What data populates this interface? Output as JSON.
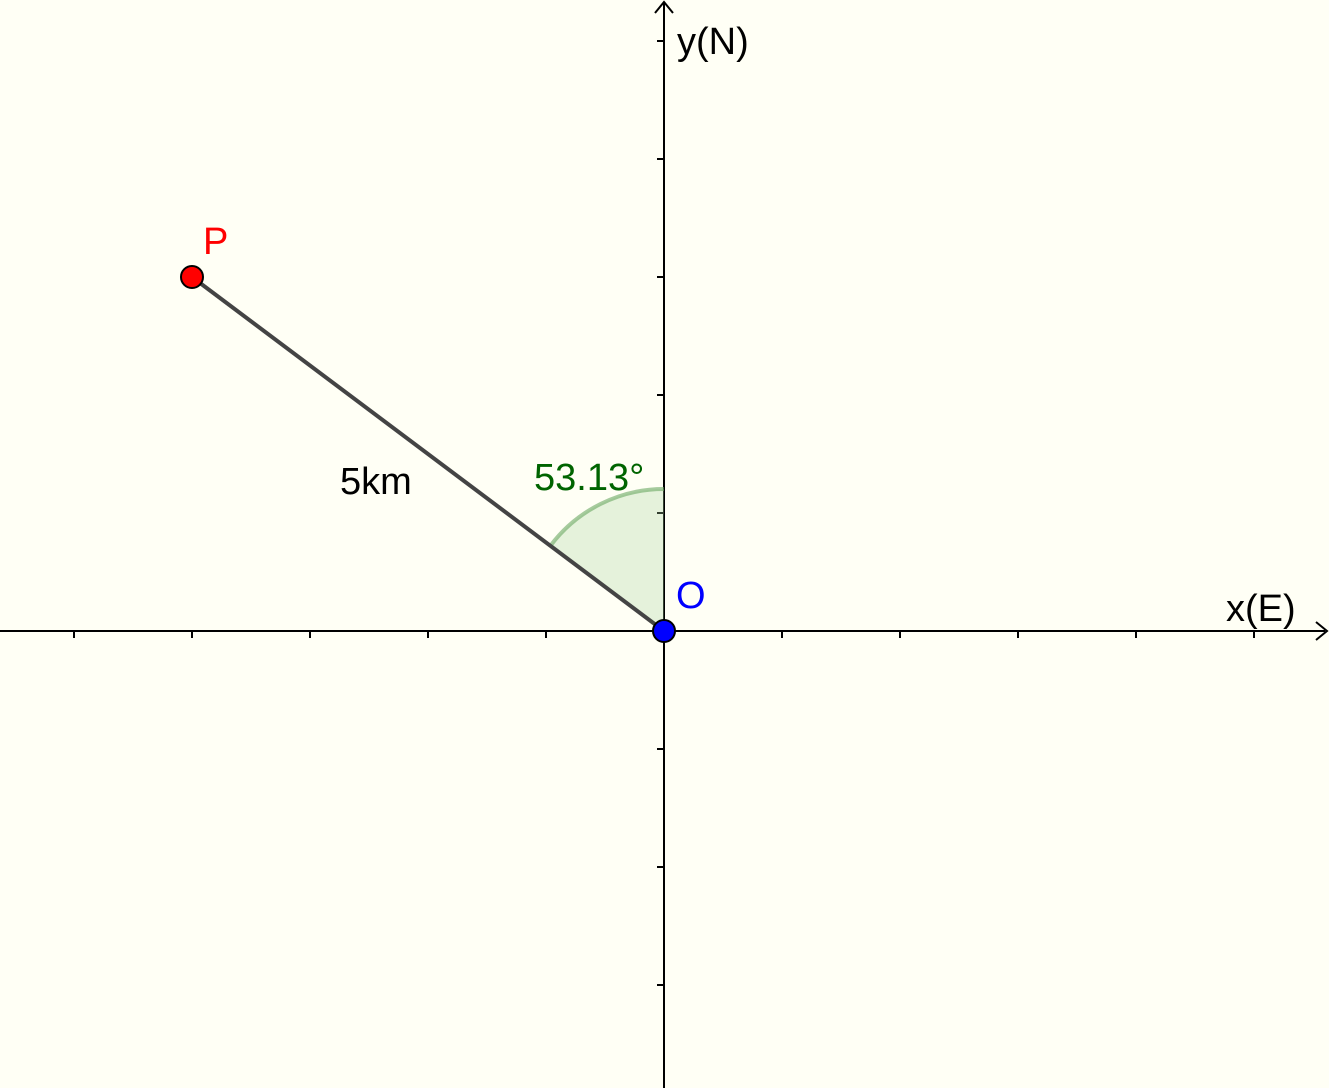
{
  "axes": {
    "x_label": "x(E)",
    "y_label": "y(N)"
  },
  "points": {
    "origin": {
      "label": "O",
      "x": 0,
      "y": 0,
      "color": "#0000ff"
    },
    "p": {
      "label": "P",
      "x": -4,
      "y": 3,
      "color": "#ff0000"
    }
  },
  "segment": {
    "label": "5km",
    "color": "#444444"
  },
  "angle": {
    "label": "53.13°",
    "color": "#006400",
    "fill": "#a9d3a0"
  },
  "colors": {
    "background": "#fffff5",
    "axis": "#000000"
  }
}
